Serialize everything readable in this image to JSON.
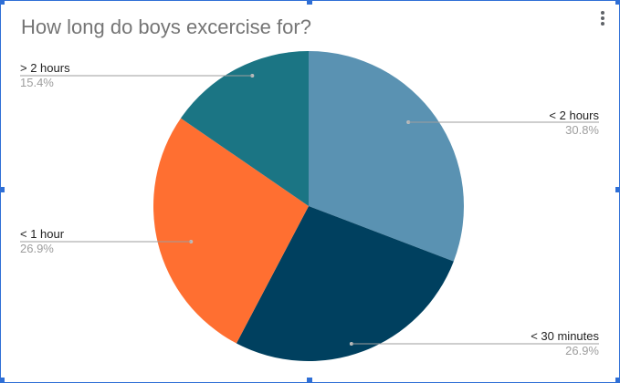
{
  "chart_data": {
    "type": "pie",
    "title": "How long do boys excercise for?",
    "slices": [
      {
        "label": "< 2 hours",
        "percent_label": "30.8%",
        "value": 30.8,
        "color": "#5a92b2"
      },
      {
        "label": "< 30 minutes",
        "percent_label": "26.9%",
        "value": 26.9,
        "color": "#00405f"
      },
      {
        "label": "< 1 hour",
        "percent_label": "26.9%",
        "value": 26.9,
        "color": "#ff6f31"
      },
      {
        "label": "> 2 hours",
        "percent_label": "15.4%",
        "value": 15.4,
        "color": "#1b7584"
      }
    ],
    "legend": "none",
    "labels_with_leader_lines": true
  },
  "icons": {
    "menu": "more-vert-icon"
  }
}
